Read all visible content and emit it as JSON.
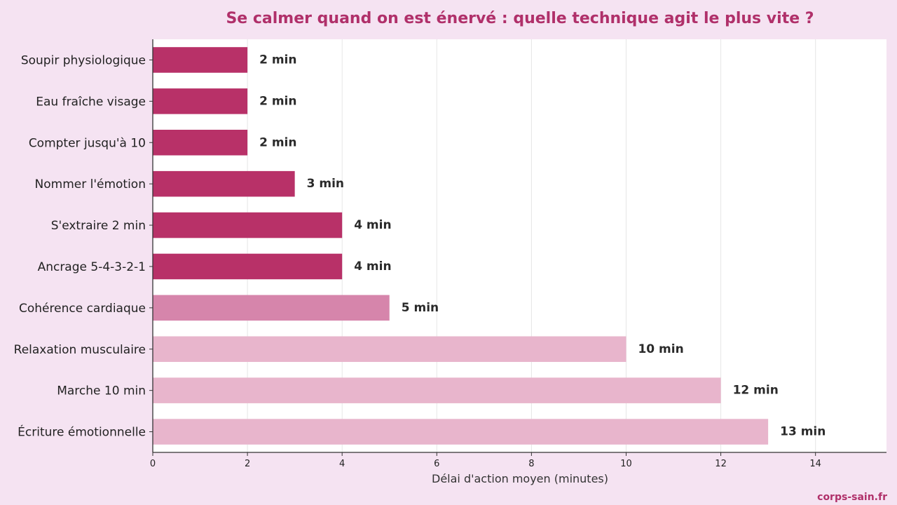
{
  "chart_data": {
    "type": "bar",
    "orientation": "horizontal",
    "title": "Se calmer quand on est énervé : quelle technique agit le plus vite ?",
    "xlabel": "Délai d'action moyen (minutes)",
    "ylabel": "",
    "xlim": [
      0,
      15.5
    ],
    "xticks": [
      0,
      2,
      4,
      6,
      8,
      10,
      12,
      14
    ],
    "grid": "vertical",
    "categories": [
      "Soupir physiologique",
      "Eau fraîche visage",
      "Compter jusqu'à 10",
      "Nommer l'émotion",
      "S'extraire 2 min",
      "Ancrage 5-4-3-2-1",
      "Cohérence cardiaque",
      "Relaxation musculaire",
      "Marche 10 min",
      "Écriture émotionnelle"
    ],
    "values": [
      2,
      2,
      2,
      3,
      4,
      4,
      5,
      10,
      12,
      13
    ],
    "data_labels": [
      "2 min",
      "2 min",
      "2 min",
      "3 min",
      "4 min",
      "4 min",
      "5 min",
      "10 min",
      "12 min",
      "13 min"
    ],
    "bar_colors": [
      "#b83168",
      "#b83168",
      "#b83168",
      "#b83168",
      "#b83168",
      "#b83168",
      "#d685ab",
      "#e8b5cc",
      "#e8b5cc",
      "#e8b5cc"
    ]
  },
  "footer": {
    "source": "corps-sain.fr"
  },
  "colors": {
    "background": "#f5e3f2",
    "plot_background": "#ffffff",
    "title": "#b0306a",
    "grid": "#e6e6e6",
    "axis": "#333333",
    "label_text": "#222222"
  }
}
